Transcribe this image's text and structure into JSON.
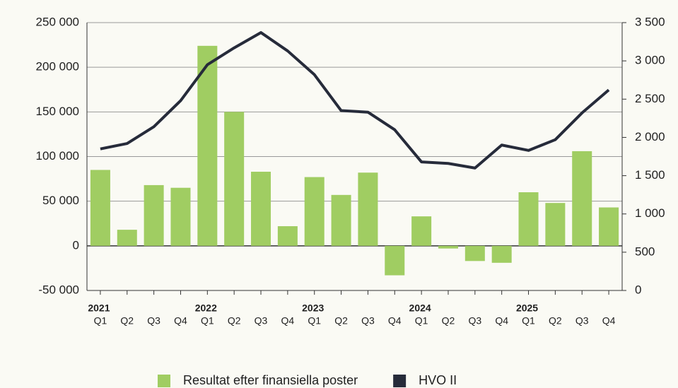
{
  "chart_data": {
    "type": "bar_line",
    "groups": [
      {
        "name": "2021",
        "categories": [
          "Q1",
          "Q2",
          "Q3",
          "Q4"
        ]
      },
      {
        "name": "2022",
        "categories": [
          "Q1",
          "Q2",
          "Q3",
          "Q4"
        ]
      },
      {
        "name": "2023",
        "categories": [
          "Q1",
          "Q2",
          "Q3",
          "Q4"
        ]
      },
      {
        "name": "2024",
        "categories": [
          "Q1",
          "Q2",
          "Q3",
          "Q4"
        ]
      },
      {
        "name": "2025",
        "categories": [
          "Q1",
          "Q2",
          "Q3",
          "Q4"
        ]
      }
    ],
    "series": [
      {
        "name": "Resultat efter finansiella poster",
        "type": "bar",
        "color": "#a0cd62",
        "values": [
          85000,
          18000,
          68000,
          65000,
          224000,
          150000,
          83000,
          22000,
          77000,
          57000,
          82000,
          -33000,
          33000,
          -3000,
          -17000,
          -19000,
          60000,
          48000,
          106000,
          43000
        ]
      },
      {
        "name": "HVO II",
        "type": "line",
        "axis": "y2",
        "color": "#262b3a",
        "values": [
          1850,
          1920,
          2140,
          2480,
          2950,
          3170,
          3370,
          3130,
          2820,
          2350,
          2330,
          2100,
          1680,
          1660,
          1600,
          1900,
          1830,
          1970,
          2320,
          2620
        ]
      }
    ],
    "ylim": [
      -50000,
      250000
    ],
    "yticks": [
      {
        "value": -50000,
        "label": "-50 000"
      },
      0,
      {
        "value": 50000,
        "label": "50 000"
      },
      {
        "value": 100000,
        "label": "100 000"
      },
      {
        "value": 150000,
        "label": "150 000"
      },
      {
        "value": 200000,
        "label": "200 000"
      },
      {
        "value": 250000,
        "label": "250 000"
      }
    ],
    "y2lim": [
      0,
      3500
    ],
    "y2ticks": [
      0,
      500,
      {
        "value": 1000,
        "label": "1 000"
      },
      {
        "value": 1500,
        "label": "1 500"
      },
      {
        "value": 2000,
        "label": "2 000"
      },
      {
        "value": 2500,
        "label": "2 500"
      },
      {
        "value": 3000,
        "label": "3 000"
      },
      {
        "value": 3500,
        "label": "3 500"
      }
    ],
    "grid": true,
    "legend": "bottom"
  }
}
